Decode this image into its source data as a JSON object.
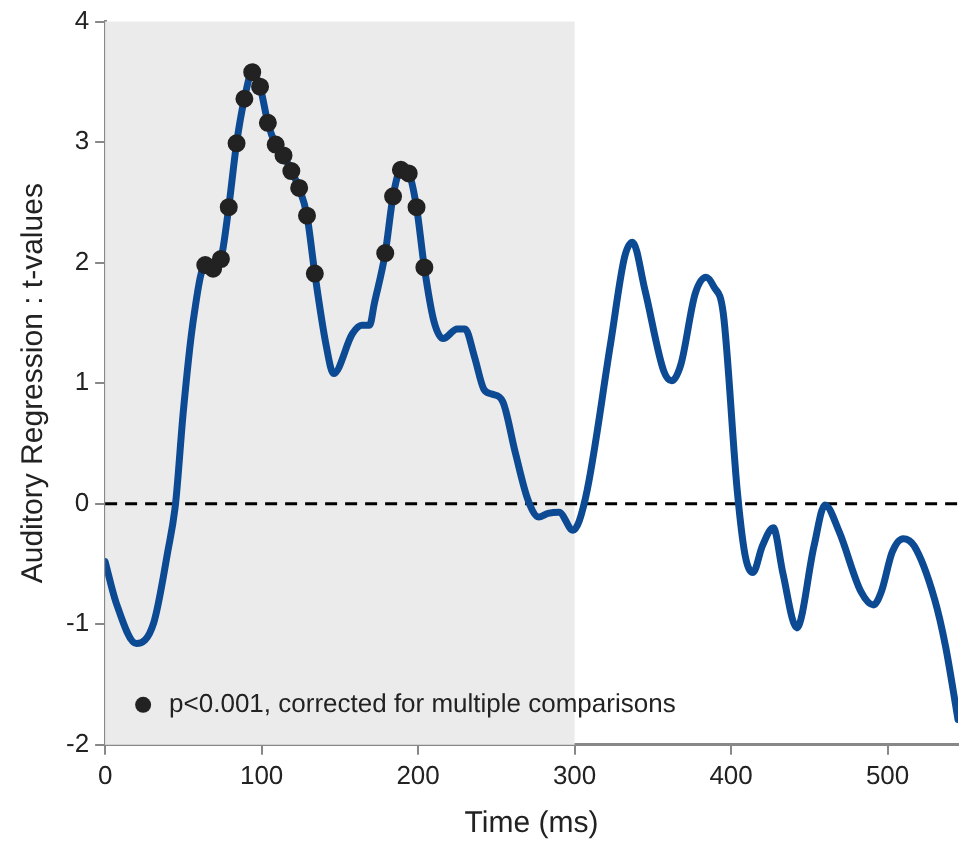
{
  "chart_data": {
    "type": "line",
    "xlabel": "Time (ms)",
    "ylabel": "Auditory Regression : t-values",
    "xlim": [
      0,
      545
    ],
    "xticks": [
      0,
      100,
      200,
      300,
      400,
      500
    ],
    "ylim": [
      -2,
      4
    ],
    "yticks": [
      -2,
      -1,
      0,
      1,
      2,
      3,
      4
    ],
    "grid": false,
    "legend": "bottom left",
    "series": [
      {
        "color": "#0d4a94",
        "marker": "none",
        "x": [
          0,
          7,
          20,
          31,
          40,
          45,
          50,
          56,
          64,
          69,
          74,
          79,
          84,
          89,
          94,
          99,
          104,
          109,
          114,
          119,
          124,
          129,
          134,
          141,
          146,
          158,
          164,
          169,
          172,
          179,
          184,
          189,
          194,
          199,
          204,
          210,
          216,
          225,
          230,
          236,
          242,
          247,
          254,
          262,
          270,
          277,
          283,
          290,
          299,
          307,
          323,
          332,
          337,
          345,
          357,
          362,
          368,
          377,
          384,
          389,
          395,
          404,
          409,
          414,
          420,
          427,
          433,
          442,
          453,
          460,
          469,
          483,
          491,
          496,
          503,
          510,
          517,
          530,
          537,
          545
        ],
        "values": [
          -0.48,
          -0.82,
          -1.16,
          -0.99,
          -0.4,
          0,
          0.77,
          1.49,
          1.98,
          1.95,
          2.03,
          2.46,
          2.99,
          3.36,
          3.58,
          3.46,
          3.16,
          2.98,
          2.89,
          2.76,
          2.62,
          2.39,
          1.91,
          1.33,
          1.08,
          1.41,
          1.48,
          1.48,
          1.66,
          2.08,
          2.55,
          2.77,
          2.74,
          2.46,
          1.96,
          1.52,
          1.37,
          1.45,
          1.45,
          1.22,
          0.95,
          0.91,
          0.85,
          0.43,
          0.04,
          -0.11,
          -0.08,
          -0.07,
          -0.22,
          0.05,
          1.33,
          2.05,
          2.17,
          1.77,
          1.1,
          1.02,
          1.16,
          1.74,
          1.88,
          1.8,
          1.58,
          0.1,
          -0.43,
          -0.57,
          -0.35,
          -0.2,
          -0.57,
          -1.03,
          -0.35,
          -0.01,
          -0.23,
          -0.73,
          -0.84,
          -0.73,
          -0.4,
          -0.29,
          -0.35,
          -0.79,
          -1.18,
          -1.79
        ]
      },
      {
        "type": "scatter",
        "name": "p<0.001, corrected for multiple comparisons",
        "color": "#222222",
        "marker": "circle",
        "x": [
          64,
          69,
          74,
          79,
          84,
          89,
          94,
          99,
          104,
          109,
          114,
          119,
          124,
          129,
          134,
          179,
          184,
          189,
          194,
          199,
          204
        ],
        "values": [
          1.98,
          1.95,
          2.03,
          2.46,
          2.99,
          3.36,
          3.58,
          3.46,
          3.16,
          2.98,
          2.89,
          2.76,
          2.62,
          2.39,
          1.91,
          2.08,
          2.55,
          2.77,
          2.74,
          2.46,
          1.96
        ]
      }
    ],
    "ref_lines": [
      {
        "axis": "y",
        "value": 0,
        "color": "#000000",
        "line_style": "dashed"
      }
    ],
    "bands": [
      {
        "axis": "x",
        "from": 0,
        "to": 300,
        "color": "#ebebeb"
      }
    ]
  }
}
